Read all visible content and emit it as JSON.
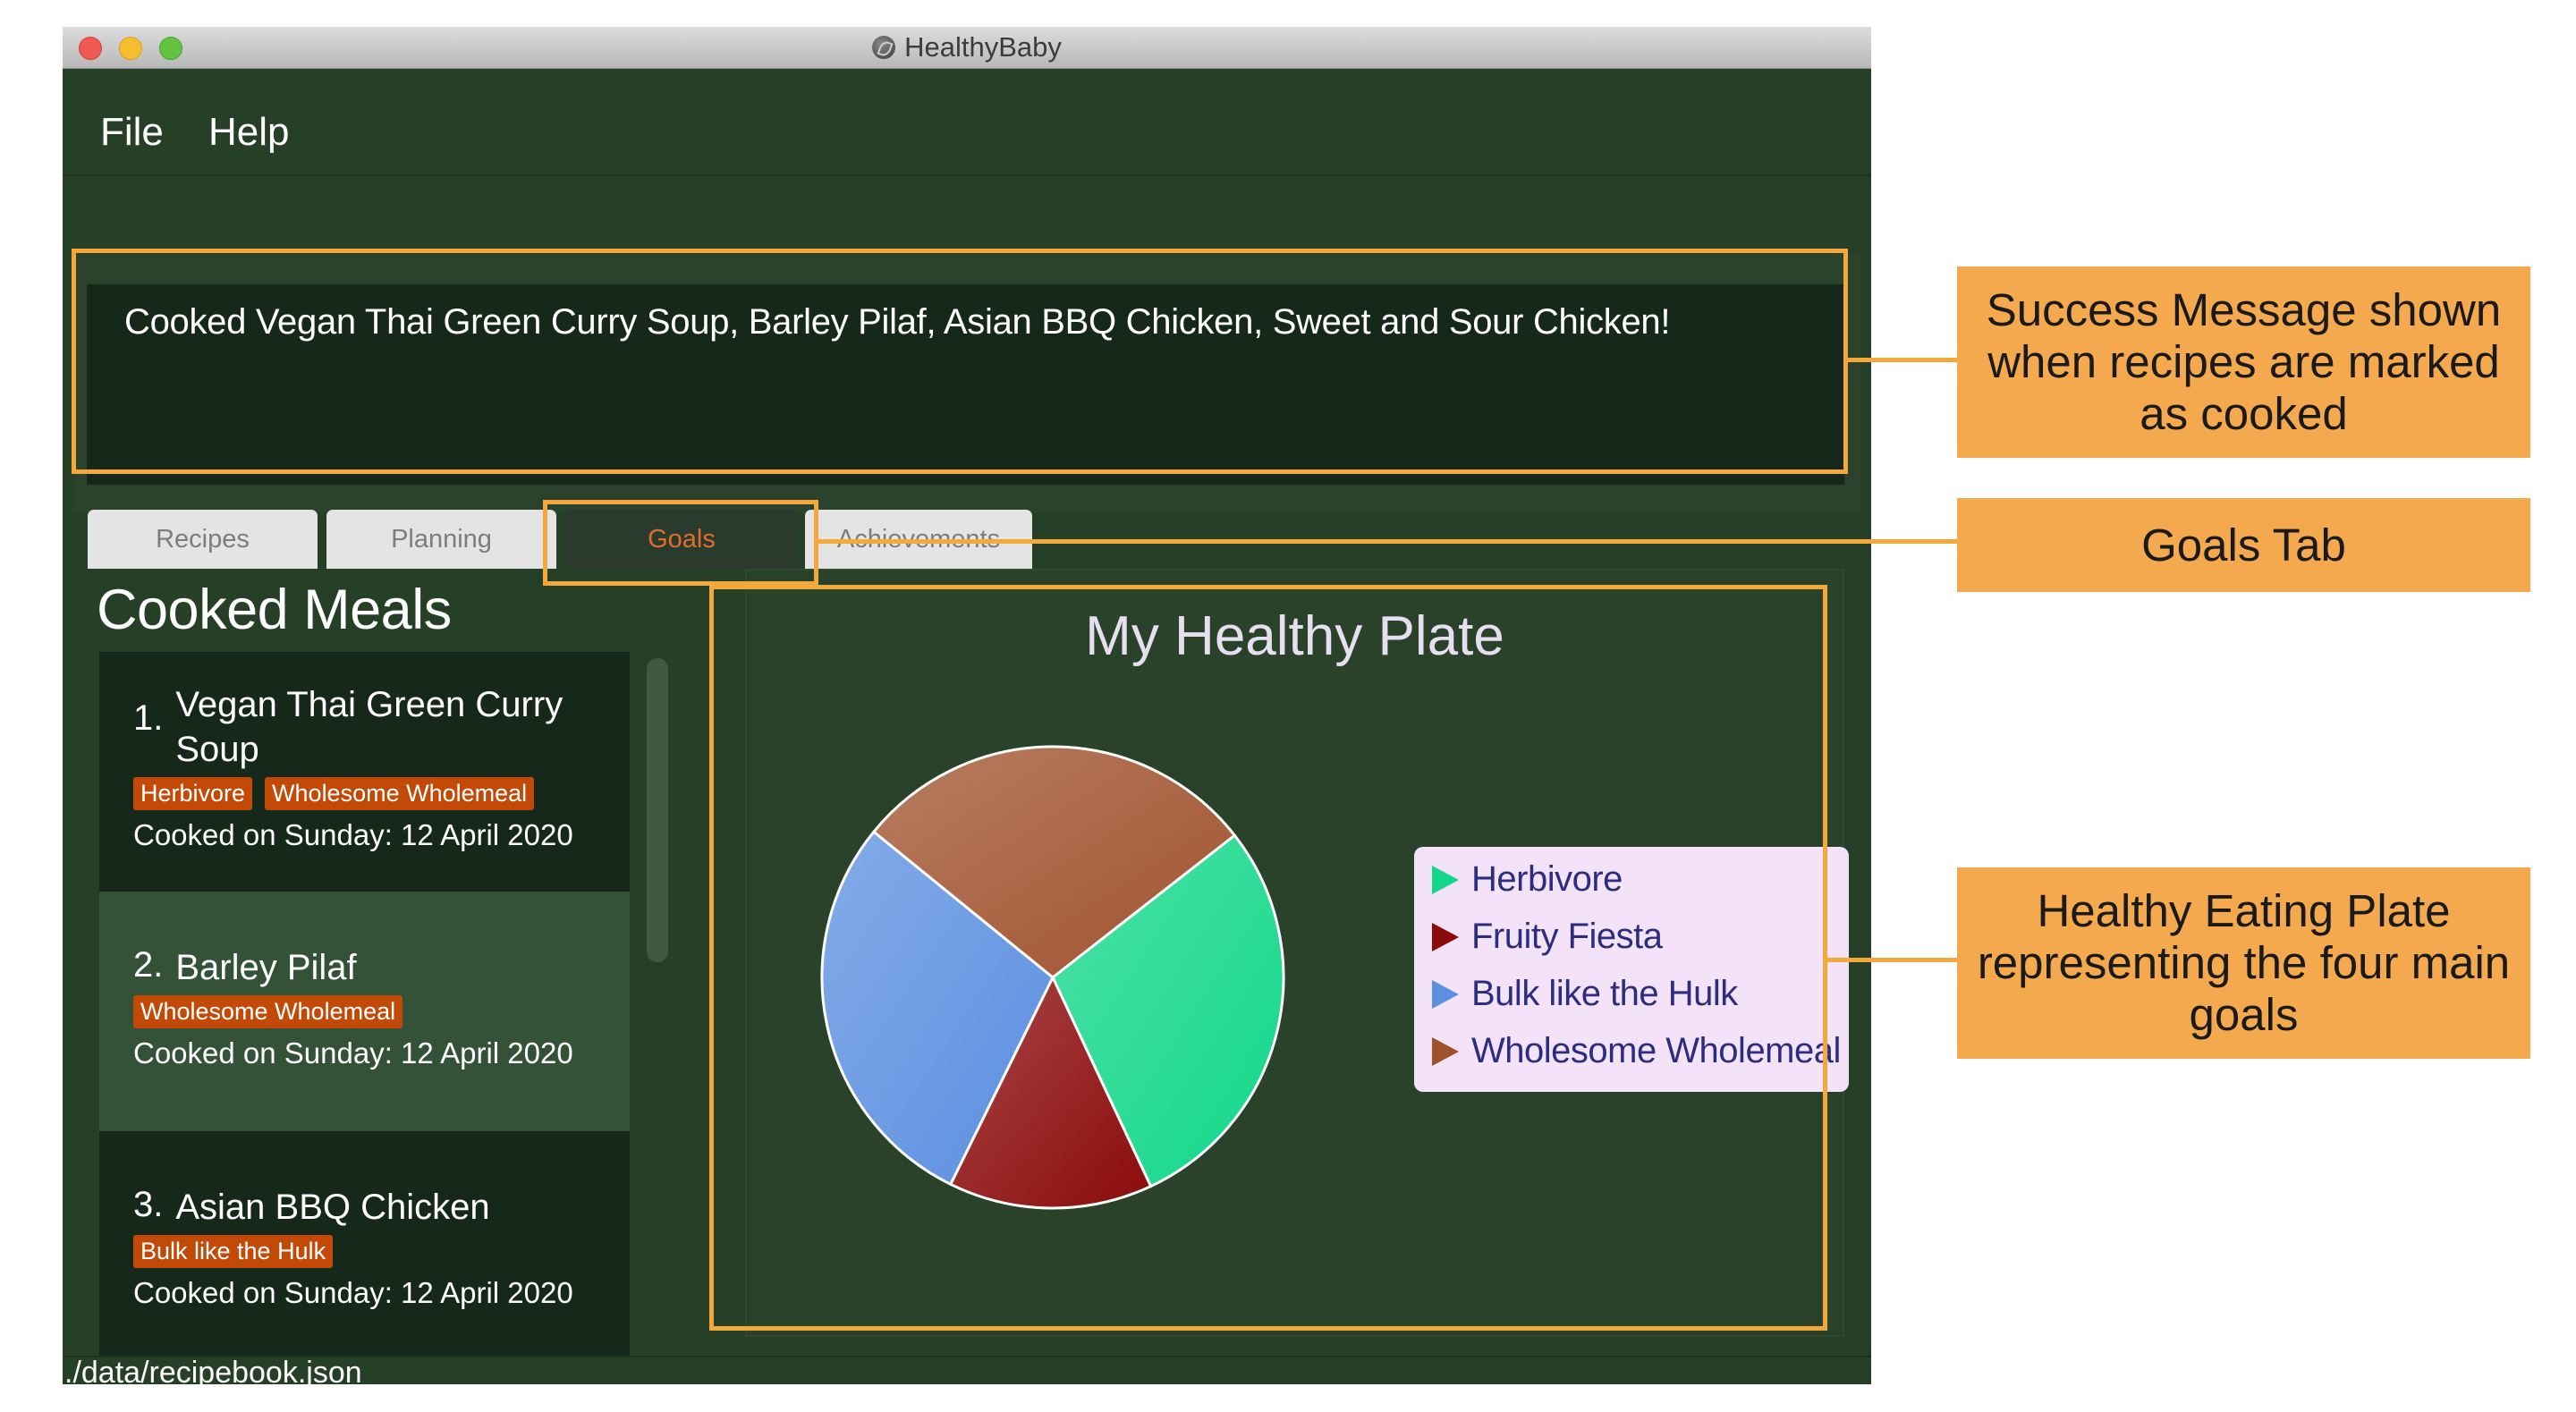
{
  "window": {
    "title": "HealthyBaby"
  },
  "menu": {
    "file": "File",
    "help": "Help"
  },
  "command": {
    "value": ""
  },
  "result": {
    "message": "Cooked Vegan Thai Green Curry Soup, Barley Pilaf, Asian BBQ Chicken, Sweet and Sour Chicken!"
  },
  "tabs": [
    {
      "label": "Recipes",
      "selected": false
    },
    {
      "label": "Planning",
      "selected": false
    },
    {
      "label": "Goals",
      "selected": true
    },
    {
      "label": "Achievements",
      "selected": false
    }
  ],
  "cooked": {
    "title": "Cooked Meals",
    "meals": [
      {
        "index": "1.",
        "name": "Vegan Thai Green Curry Soup",
        "tags": [
          "Herbivore",
          "Wholesome Wholemeal"
        ],
        "date": "Cooked on Sunday: 12 April 2020"
      },
      {
        "index": "2.",
        "name": "Barley Pilaf",
        "tags": [
          "Wholesome Wholemeal"
        ],
        "date": "Cooked on Sunday: 12 April 2020"
      },
      {
        "index": "3.",
        "name": "Asian BBQ Chicken",
        "tags": [
          "Bulk like the Hulk"
        ],
        "date": "Cooked on Sunday: 12 April 2020"
      }
    ]
  },
  "plate": {
    "title": "My Healthy Plate"
  },
  "chart_data": {
    "type": "pie",
    "title": "My Healthy Plate",
    "legend_position": "right",
    "slices": [
      {
        "name": "Herbivore",
        "value": 2,
        "color": "#12d789"
      },
      {
        "name": "Fruity Fiesta",
        "value": 1,
        "color": "#8b0a0a"
      },
      {
        "name": "Bulk like the Hulk",
        "value": 2,
        "color": "#5b8fe0"
      },
      {
        "name": "Wholesome Wholemeal",
        "value": 2,
        "color": "#a0522d"
      }
    ]
  },
  "status": {
    "path": "./data/recipebook.json"
  },
  "colors": {
    "highlight": "#f4a83c",
    "tag": "#c24a06",
    "background": "#263f27"
  },
  "callouts": [
    {
      "text": "Success Message shown when recipes are marked as cooked"
    },
    {
      "text": "Goals Tab"
    },
    {
      "text": "Healthy Eating Plate representing the four main goals"
    }
  ]
}
